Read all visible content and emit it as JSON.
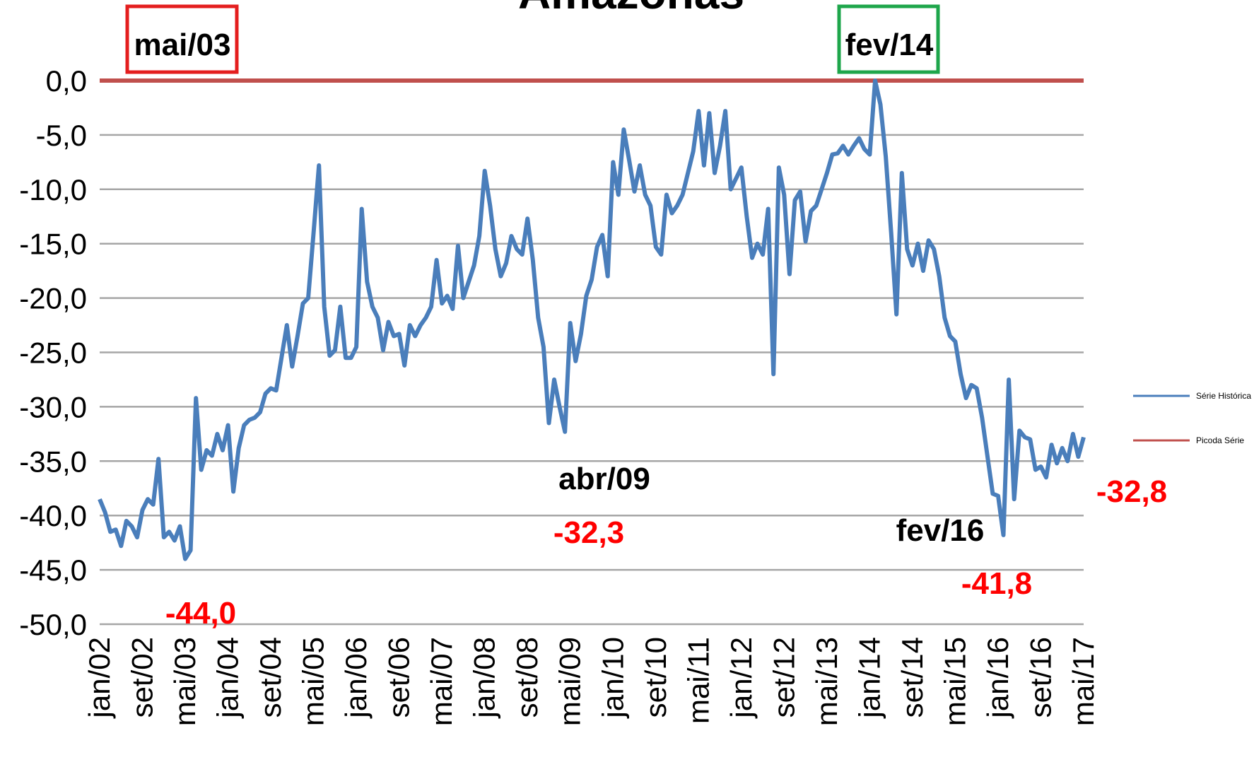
{
  "chart_data": {
    "type": "line",
    "title": "Amazonas",
    "categories": [
      "jan/02",
      null,
      null,
      null,
      null,
      null,
      null,
      null,
      "set/02",
      null,
      null,
      null,
      null,
      null,
      null,
      null,
      "mai/03",
      null,
      null,
      null,
      null,
      null,
      null,
      null,
      "jan/04",
      null,
      null,
      null,
      null,
      null,
      null,
      null,
      "set/04",
      null,
      null,
      null,
      null,
      null,
      null,
      null,
      "mai/05",
      null,
      null,
      null,
      null,
      null,
      null,
      null,
      "jan/06",
      null,
      null,
      null,
      null,
      null,
      null,
      null,
      "set/06",
      null,
      null,
      null,
      null,
      null,
      null,
      null,
      "mai/07",
      null,
      null,
      null,
      null,
      null,
      null,
      null,
      "jan/08",
      null,
      null,
      null,
      null,
      null,
      null,
      null,
      "set/08",
      null,
      null,
      null,
      null,
      null,
      null,
      null,
      "mai/09",
      null,
      null,
      null,
      null,
      null,
      null,
      null,
      "jan/10",
      null,
      null,
      null,
      null,
      null,
      null,
      null,
      "set/10",
      null,
      null,
      null,
      null,
      null,
      null,
      null,
      "mai/11",
      null,
      null,
      null,
      null,
      null,
      null,
      null,
      "jan/12",
      null,
      null,
      null,
      null,
      null,
      null,
      null,
      "set/12",
      null,
      null,
      null,
      null,
      null,
      null,
      null,
      "mai/13",
      null,
      null,
      null,
      null,
      null,
      null,
      null,
      "jan/14",
      null,
      null,
      null,
      null,
      null,
      null,
      null,
      "set/14",
      null,
      null,
      null,
      null,
      null,
      null,
      null,
      "mai/15",
      null,
      null,
      null,
      null,
      null,
      null,
      null,
      "jan/16",
      null,
      null,
      null,
      null,
      null,
      null,
      null,
      "set/16",
      null,
      null,
      null,
      null,
      null,
      null,
      null,
      "mai/17"
    ],
    "series": [
      {
        "name": "Série Histórica",
        "color": "#4a7ebb",
        "values": [
          -38.5,
          -39.7,
          -41.5,
          -41.3,
          -42.8,
          -40.5,
          -41,
          -42,
          -39.5,
          -38.5,
          -39,
          -34.8,
          -42,
          -41.5,
          -42.3,
          -41,
          -44,
          -43.2,
          -29.2,
          -35.8,
          -34,
          -34.5,
          -32.5,
          -34,
          -31.7,
          -37.8,
          -33.8,
          -31.7,
          -31.2,
          -31,
          -30.5,
          -28.8,
          -28.3,
          -28.5,
          -25.5,
          -22.5,
          -26.3,
          -23.5,
          -20.5,
          -20,
          -14,
          -7.8,
          -20.8,
          -25.3,
          -24.8,
          -20.8,
          -25.5,
          -25.5,
          -24.5,
          -11.8,
          -18.5,
          -20.8,
          -21.8,
          -24.8,
          -22.2,
          -23.5,
          -23.3,
          -26.2,
          -22.5,
          -23.5,
          -22.5,
          -21.8,
          -20.8,
          -16.5,
          -20.5,
          -19.8,
          -21,
          -15.2,
          -20,
          -18.5,
          -17,
          -14.3,
          -8.3,
          -11.5,
          -15.5,
          -18,
          -16.8,
          -14.3,
          -15.5,
          -16,
          -12.7,
          -16.5,
          -21.8,
          -24.5,
          -31.5,
          -27.5,
          -30,
          -32.3,
          -22.3,
          -25.8,
          -23.3,
          -19.8,
          -18.3,
          -15.3,
          -14.2,
          -18,
          -7.5,
          -10.5,
          -4.5,
          -7.3,
          -10.2,
          -7.8,
          -10.5,
          -11.5,
          -15.3,
          -16,
          -10.5,
          -12.2,
          -11.5,
          -10.5,
          -8.5,
          -6.5,
          -2.8,
          -7.8,
          -3,
          -8.5,
          -6,
          -2.8,
          -10,
          -9,
          -8,
          -12.5,
          -16.3,
          -15,
          -16,
          -11.8,
          -27,
          -8,
          -10.5,
          -17.8,
          -11,
          -10.2,
          -14.8,
          -12,
          -11.5,
          -10,
          -8.5,
          -6.8,
          -6.7,
          -6,
          -6.8,
          -6,
          -5.3,
          -6.3,
          -6.8,
          0,
          -2.2,
          -7,
          -14,
          -21.5,
          -8.5,
          -15.5,
          -17,
          -15,
          -17.5,
          -14.7,
          -15.5,
          -18,
          -21.8,
          -23.5,
          -24,
          -27,
          -29.2,
          -28,
          -28.3,
          -31,
          -34.5,
          -38,
          -38.2,
          -41.8,
          -27.5,
          -38.5,
          -32.2,
          -32.8,
          -33,
          -35.8,
          -35.5,
          -36.5,
          -33.5,
          -35.2,
          -33.8,
          -35,
          -32.5,
          -34.6,
          -32.8
        ]
      },
      {
        "name": "Picoda Série",
        "color": "#c0504d",
        "values": [
          0,
          0,
          0,
          0,
          0,
          0,
          0,
          0,
          0,
          0,
          0,
          0,
          0,
          0,
          0,
          0,
          0,
          0,
          0,
          0,
          0,
          0,
          0,
          0,
          0,
          0,
          0,
          0,
          0,
          0,
          0,
          0,
          0,
          0,
          0,
          0,
          0,
          0,
          0,
          0,
          0,
          0,
          0,
          0,
          0,
          0,
          0,
          0,
          0,
          0,
          0,
          0,
          0,
          0,
          0,
          0,
          0,
          0,
          0,
          0,
          0,
          0,
          0,
          0,
          0,
          0,
          0,
          0,
          0,
          0,
          0,
          0,
          0,
          0,
          0,
          0,
          0,
          0,
          0,
          0,
          0,
          0,
          0,
          0,
          0,
          0,
          0,
          0,
          0,
          0,
          0,
          0,
          0,
          0,
          0,
          0,
          0,
          0,
          0,
          0,
          0,
          0,
          0,
          0,
          0,
          0,
          0,
          0,
          0,
          0,
          0,
          0,
          0,
          0,
          0,
          0,
          0,
          0,
          0,
          0,
          0,
          0,
          0,
          0,
          0,
          0,
          0,
          0,
          0,
          0,
          0,
          0,
          0,
          0,
          0,
          0,
          0,
          0,
          0,
          0,
          0,
          0,
          0,
          0,
          0,
          0,
          0,
          0,
          0,
          0,
          0,
          0,
          0,
          0,
          0,
          0,
          0,
          0,
          0,
          0,
          0,
          0,
          0,
          0,
          0,
          0,
          0,
          0,
          0,
          0,
          0,
          0,
          0,
          0,
          0,
          0,
          0,
          0,
          0,
          0,
          0,
          0,
          0,
          0,
          0
        ]
      }
    ],
    "ylim": [
      -50,
      0
    ],
    "yticks": [
      {
        "value": 0,
        "label": "0,0"
      },
      {
        "value": -5,
        "label": "-5,0"
      },
      {
        "value": -10,
        "label": "-10,0"
      },
      {
        "value": -15,
        "label": "-15,0"
      },
      {
        "value": -20,
        "label": "-20,0"
      },
      {
        "value": -25,
        "label": "-25,0"
      },
      {
        "value": -30,
        "label": "-30,0"
      },
      {
        "value": -35,
        "label": "-35,0"
      },
      {
        "value": -40,
        "label": "-40,0"
      },
      {
        "value": -45,
        "label": "-45,0"
      },
      {
        "value": -50,
        "label": "-50,0"
      }
    ],
    "grid": true,
    "legend": "right",
    "annotations": [
      "mai/03",
      "fev/14",
      "abr/09",
      "-32,3",
      "fev/16",
      "-41,8",
      "-44,0",
      "-32,8"
    ]
  }
}
